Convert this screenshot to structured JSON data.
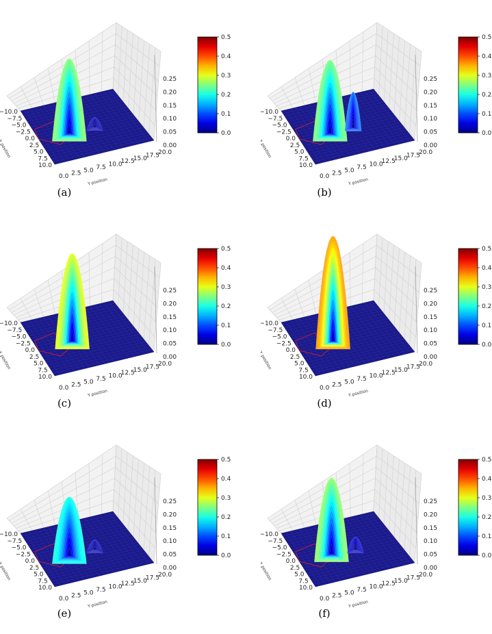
{
  "chart_data": [
    {
      "type": "surface3d",
      "caption": "(a)",
      "peak": 0.255,
      "peak_pos": [
        1.0,
        6.5
      ],
      "secondary": [
        [
          0.03,
          1.0,
          12.0
        ]
      ],
      "xlabel": "X position",
      "ylabel": "Y position",
      "x_ticks": [
        "−10.0",
        "−7.5",
        "−5.0",
        "−2.5",
        "0.0",
        "2.5",
        "5.0",
        "7.5",
        "10.0"
      ],
      "y_ticks": [
        "0.0",
        "2.5",
        "5.0",
        "7.5",
        "10.0",
        "12.5",
        "15.0",
        "17.5",
        "20.0"
      ],
      "z_ticks": [
        "0.00",
        "0.05",
        "0.10",
        "0.15",
        "0.20",
        "0.25"
      ],
      "colorbar": {
        "ticks": [
          "0.0",
          "0.1",
          "0.2",
          "0.3",
          "0.4",
          "0.5"
        ],
        "vmin": 0.0,
        "vmax": 0.5,
        "colormap": "jet"
      }
    },
    {
      "type": "surface3d",
      "caption": "(b)",
      "peak": 0.25,
      "peak_pos": [
        1.0,
        6.5
      ],
      "secondary": [
        [
          0.12,
          1.0,
          11.5
        ]
      ],
      "xlabel": "X position",
      "ylabel": "Y position",
      "x_ticks": [
        "−10.0",
        "−7.5",
        "−5.0",
        "−2.5",
        "0.0",
        "2.5",
        "5.0",
        "7.5",
        "10.0"
      ],
      "y_ticks": [
        "0.0",
        "2.5",
        "5.0",
        "7.5",
        "10.0",
        "12.5",
        "15.0",
        "17.5",
        "20.0"
      ],
      "z_ticks": [
        "0.00",
        "0.05",
        "0.10",
        "0.15",
        "0.20",
        "0.25"
      ],
      "colorbar": {
        "ticks": [
          "0.0",
          "0.1",
          "0.2",
          "0.3",
          "0.4",
          "0.5"
        ],
        "vmin": 0.0,
        "vmax": 0.5,
        "colormap": "jet"
      }
    },
    {
      "type": "surface3d",
      "caption": "(c)",
      "peak": 0.3,
      "peak_pos": [
        0.0,
        7.5
      ],
      "secondary": [],
      "xlabel": "X position",
      "ylabel": "Y position",
      "x_ticks": [
        "−10.0",
        "−7.5",
        "−5.0",
        "−2.5",
        "0.0",
        "2.5",
        "5.0",
        "7.5",
        "10.0"
      ],
      "y_ticks": [
        "0.0",
        "2.5",
        "5.0",
        "7.5",
        "10.0",
        "12.5",
        "15.0",
        "17.5",
        "20.0"
      ],
      "z_ticks": [
        "0.00",
        "0.05",
        "0.10",
        "0.15",
        "0.20",
        "0.25"
      ],
      "colorbar": {
        "ticks": [
          "0.0",
          "0.1",
          "0.2",
          "0.3",
          "0.4",
          "0.5"
        ],
        "vmin": 0.0,
        "vmax": 0.5,
        "colormap": "jet"
      }
    },
    {
      "type": "surface3d",
      "caption": "(d)",
      "peak": 0.36,
      "peak_pos": [
        0.0,
        7.5
      ],
      "secondary": [],
      "xlabel": "X position",
      "ylabel": "Y position",
      "x_ticks": [
        "−10.0",
        "−7.5",
        "−5.0",
        "−2.5",
        "0.0",
        "2.5",
        "5.0",
        "7.5",
        "10.0"
      ],
      "y_ticks": [
        "0.0",
        "2.5",
        "5.0",
        "7.5",
        "10.0",
        "12.5",
        "15.0",
        "17.5",
        "20.0"
      ],
      "z_ticks": [
        "0.00",
        "0.05",
        "0.10",
        "0.15",
        "0.20",
        "0.25"
      ],
      "colorbar": {
        "ticks": [
          "0.0",
          "0.1",
          "0.2",
          "0.3",
          "0.4",
          "0.5"
        ],
        "vmin": 0.0,
        "vmax": 0.5,
        "colormap": "jet"
      }
    },
    {
      "type": "surface3d",
      "caption": "(e)",
      "peak": 0.2,
      "peak_pos": [
        1.0,
        6.5
      ],
      "secondary": [
        [
          0.03,
          1.0,
          12.0
        ]
      ],
      "xlabel": "X position",
      "ylabel": "Y position",
      "x_ticks": [
        "−10.0",
        "−7.5",
        "−5.0",
        "−2.5",
        "0.0",
        "2.5",
        "5.0",
        "7.5",
        "10.0"
      ],
      "y_ticks": [
        "0.0",
        "2.5",
        "5.0",
        "7.5",
        "10.0",
        "12.5",
        "15.0",
        "17.5",
        "20.0"
      ],
      "z_ticks": [
        "0.00",
        "0.05",
        "0.10",
        "0.15",
        "0.20",
        "0.25"
      ],
      "colorbar": {
        "ticks": [
          "0.0",
          "0.1",
          "0.2",
          "0.3",
          "0.4",
          "0.5"
        ],
        "vmin": 0.0,
        "vmax": 0.5,
        "colormap": "jet"
      }
    },
    {
      "type": "surface3d",
      "caption": "(f)",
      "peak": 0.26,
      "peak_pos": [
        0.5,
        7.0
      ],
      "secondary": [
        [
          0.04,
          1.0,
          12.0
        ]
      ],
      "xlabel": "X position",
      "ylabel": "Y position",
      "x_ticks": [
        "−10.0",
        "−7.5",
        "−5.0",
        "−2.5",
        "0.0",
        "2.5",
        "5.0",
        "7.5",
        "10.0"
      ],
      "y_ticks": [
        "0.0",
        "2.5",
        "5.0",
        "7.5",
        "10.0",
        "12.5",
        "15.0",
        "17.5",
        "20.0"
      ],
      "z_ticks": [
        "0.00",
        "0.05",
        "0.10",
        "0.15",
        "0.20",
        "0.25"
      ],
      "colorbar": {
        "ticks": [
          "0.0",
          "0.1",
          "0.2",
          "0.3",
          "0.4",
          "0.5"
        ],
        "vmin": 0.0,
        "vmax": 0.5,
        "colormap": "jet"
      }
    }
  ],
  "colors": {
    "floor": "#1a1a8c",
    "pane": "#f2f2f2",
    "grid": "#d0d0d0",
    "boundary": "#e02020"
  }
}
